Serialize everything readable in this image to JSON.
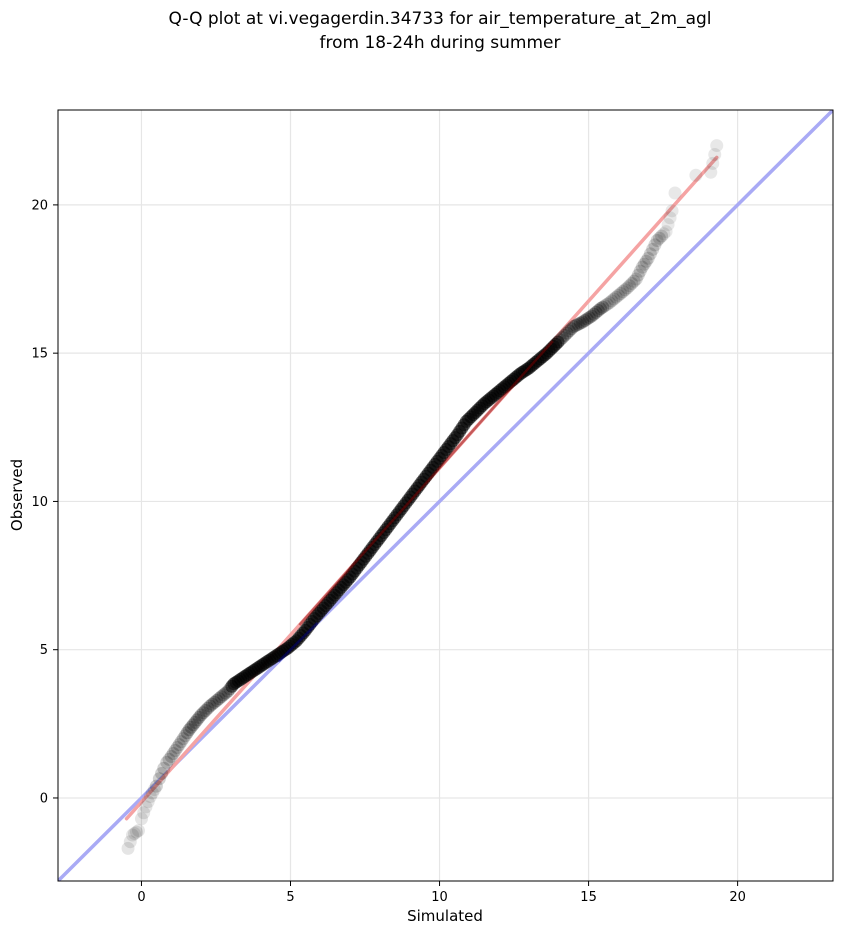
{
  "chart_data": {
    "type": "scatter",
    "title": [
      "Q-Q plot at vi.vegagerdin.34733 for air_temperature_at_2m_agl",
      "from 18-24h during summer"
    ],
    "xlabel": "Simulated",
    "ylabel": "Observed",
    "xlim": [
      -2.8,
      23.2
    ],
    "ylim": [
      -2.8,
      23.2
    ],
    "xticks": [
      0,
      5,
      10,
      15,
      20
    ],
    "yticks": [
      0,
      5,
      10,
      15,
      20
    ],
    "grid": true,
    "colors": {
      "points": "#000000",
      "identity_line": "#a9aaf5",
      "fit_line": "#f5a3a3",
      "inner_fit": "#8b0000",
      "inner_identity": "#00008b"
    },
    "quantile_points": {
      "x": [
        -0.45,
        -0.3,
        -0.1,
        0.0,
        0.15,
        0.3,
        0.5,
        0.6,
        0.75,
        0.85,
        1.0,
        1.2,
        1.4,
        1.6,
        1.8,
        2.0,
        2.3,
        2.6,
        2.9,
        3.1,
        3.4,
        3.7,
        4.0,
        4.3,
        4.6,
        4.9,
        5.2,
        5.5,
        5.8,
        6.1,
        6.4,
        6.7,
        7.0,
        7.3,
        7.6,
        7.9,
        8.2,
        8.5,
        8.8,
        9.1,
        9.4,
        9.7,
        10.0,
        10.3,
        10.6,
        10.9,
        11.2,
        11.5,
        11.8,
        12.1,
        12.4,
        12.7,
        13.0,
        13.3,
        13.6,
        13.9,
        14.2,
        14.5,
        14.8,
        15.1,
        15.4,
        15.7,
        16.0,
        16.3,
        16.6,
        16.8,
        17.0,
        17.3,
        17.6,
        17.8,
        17.9,
        18.6,
        19.1,
        19.3
      ],
      "y": [
        -1.7,
        -1.25,
        -1.1,
        -0.7,
        -0.3,
        0.05,
        0.4,
        0.65,
        1.0,
        1.2,
        1.4,
        1.7,
        2.0,
        2.3,
        2.55,
        2.8,
        3.1,
        3.35,
        3.6,
        3.85,
        4.05,
        4.25,
        4.45,
        4.65,
        4.85,
        5.05,
        5.3,
        5.65,
        6.05,
        6.4,
        6.75,
        7.1,
        7.45,
        7.85,
        8.25,
        8.65,
        9.05,
        9.45,
        9.85,
        10.25,
        10.65,
        11.05,
        11.45,
        11.85,
        12.25,
        12.7,
        13.0,
        13.3,
        13.55,
        13.8,
        14.05,
        14.3,
        14.5,
        14.75,
        15.0,
        15.3,
        15.6,
        15.9,
        16.05,
        16.25,
        16.5,
        16.7,
        16.95,
        17.2,
        17.5,
        17.9,
        18.2,
        18.8,
        19.1,
        19.8,
        20.4,
        21.0,
        21.1,
        22.0
      ]
    },
    "fit_line": {
      "x": [
        -0.5,
        19.3
      ],
      "y": [
        -0.7,
        21.6
      ]
    },
    "identity_line": {
      "x": [
        -2.8,
        23.2
      ],
      "y": [
        -2.8,
        23.2
      ]
    }
  }
}
